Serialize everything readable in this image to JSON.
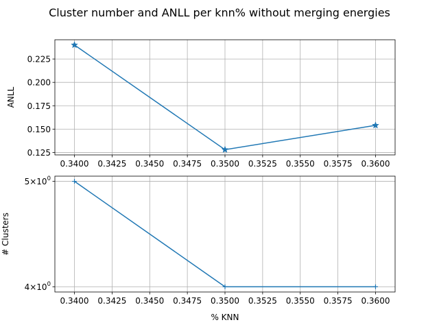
{
  "figure": {
    "title": "Cluster number and ANLL per knn% without merging energies"
  },
  "colors": {
    "series": "#1f77b4",
    "grid": "#b0b0b0",
    "axes": "#000000"
  },
  "chart_data": [
    {
      "type": "line",
      "title": "",
      "xlabel": "",
      "ylabel": "ANLL",
      "x": [
        0.34,
        0.35,
        0.36
      ],
      "series": [
        {
          "values": [
            0.24,
            0.128,
            0.154
          ]
        }
      ],
      "marker": "star",
      "xlim": [
        0.3387,
        0.3613
      ],
      "ylim": [
        0.1224,
        0.2456
      ],
      "xticks": [
        0.34,
        0.3425,
        0.345,
        0.3475,
        0.35,
        0.3525,
        0.355,
        0.3575,
        0.36
      ],
      "xtick_labels": [
        "0.3400",
        "0.3425",
        "0.3450",
        "0.3475",
        "0.3500",
        "0.3525",
        "0.3550",
        "0.3575",
        "0.3600"
      ],
      "yticks": [
        0.125,
        0.15,
        0.175,
        0.2,
        0.225
      ],
      "ytick_labels": [
        "0.125",
        "0.150",
        "0.175",
        "0.200",
        "0.225"
      ],
      "grid": true,
      "yscale": "linear"
    },
    {
      "type": "line",
      "title": "",
      "xlabel": "% KNN",
      "ylabel": "# Clusters",
      "x": [
        0.34,
        0.35,
        0.36
      ],
      "series": [
        {
          "values": [
            5,
            4,
            4
          ]
        }
      ],
      "marker": "plus",
      "xlim": [
        0.3387,
        0.3613
      ],
      "ylim": [
        3.956,
        5.055
      ],
      "xticks": [
        0.34,
        0.3425,
        0.345,
        0.3475,
        0.35,
        0.3525,
        0.355,
        0.3575,
        0.36
      ],
      "xtick_labels": [
        "0.3400",
        "0.3425",
        "0.3450",
        "0.3475",
        "0.3500",
        "0.3525",
        "0.3550",
        "0.3575",
        "0.3600"
      ],
      "yticks": [
        4,
        5
      ],
      "ytick_labels": [
        {
          "base": "4",
          "mult": "×",
          "ten": "10",
          "exp": "0"
        },
        {
          "base": "5",
          "mult": "×",
          "ten": "10",
          "exp": "0"
        }
      ],
      "grid": true,
      "yscale": "log"
    }
  ]
}
